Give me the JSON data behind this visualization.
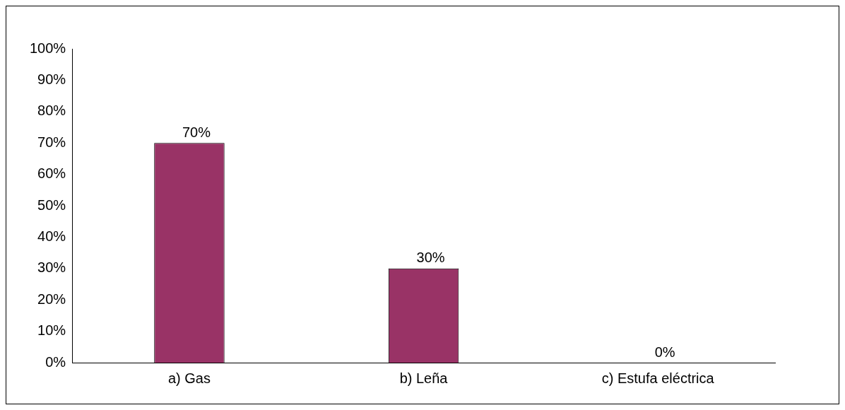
{
  "chart_data": {
    "type": "bar",
    "categories": [
      "a) Gas",
      "b) Leña",
      "c) Estufa eléctrica"
    ],
    "values": [
      70,
      30,
      0
    ],
    "color": "#993366",
    "value_labels": [
      "70%",
      "30%",
      "0%"
    ],
    "ylim": [
      0,
      100
    ],
    "yticks": [
      {
        "value": 0,
        "label": "0%"
      },
      {
        "value": 10,
        "label": "10%"
      },
      {
        "value": 20,
        "label": "20%"
      },
      {
        "value": 30,
        "label": "30%"
      },
      {
        "value": 40,
        "label": "40%"
      },
      {
        "value": 50,
        "label": "50%"
      },
      {
        "value": 60,
        "label": "60%"
      },
      {
        "value": 70,
        "label": "70%"
      },
      {
        "value": 80,
        "label": "80%"
      },
      {
        "value": 90,
        "label": "90%"
      },
      {
        "value": 100,
        "label": "100%"
      }
    ]
  }
}
